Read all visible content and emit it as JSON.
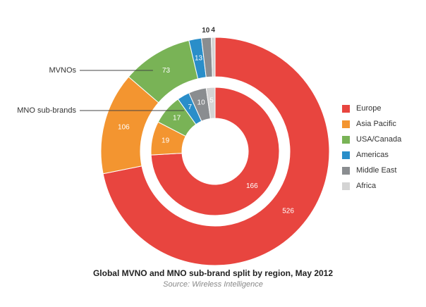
{
  "chart_data": {
    "type": "donut",
    "title": "Global MVNO and MNO sub-brand split by region, May 2012",
    "source": "Source: Wireless Intelligence",
    "categories": [
      "Europe",
      "Asia Pacific",
      "USA/Canada",
      "Americas",
      "Middle East",
      "Africa"
    ],
    "colors": [
      "#e8453f",
      "#f39530",
      "#79b356",
      "#2a8ec9",
      "#8a8d90",
      "#d4d4d4"
    ],
    "series": [
      {
        "name": "MVNOs",
        "values": [
          526,
          106,
          73,
          13,
          10,
          4
        ]
      },
      {
        "name": "MNO sub-brands",
        "values": [
          166,
          19,
          17,
          7,
          10,
          5
        ]
      }
    ],
    "legend_position": "right"
  }
}
